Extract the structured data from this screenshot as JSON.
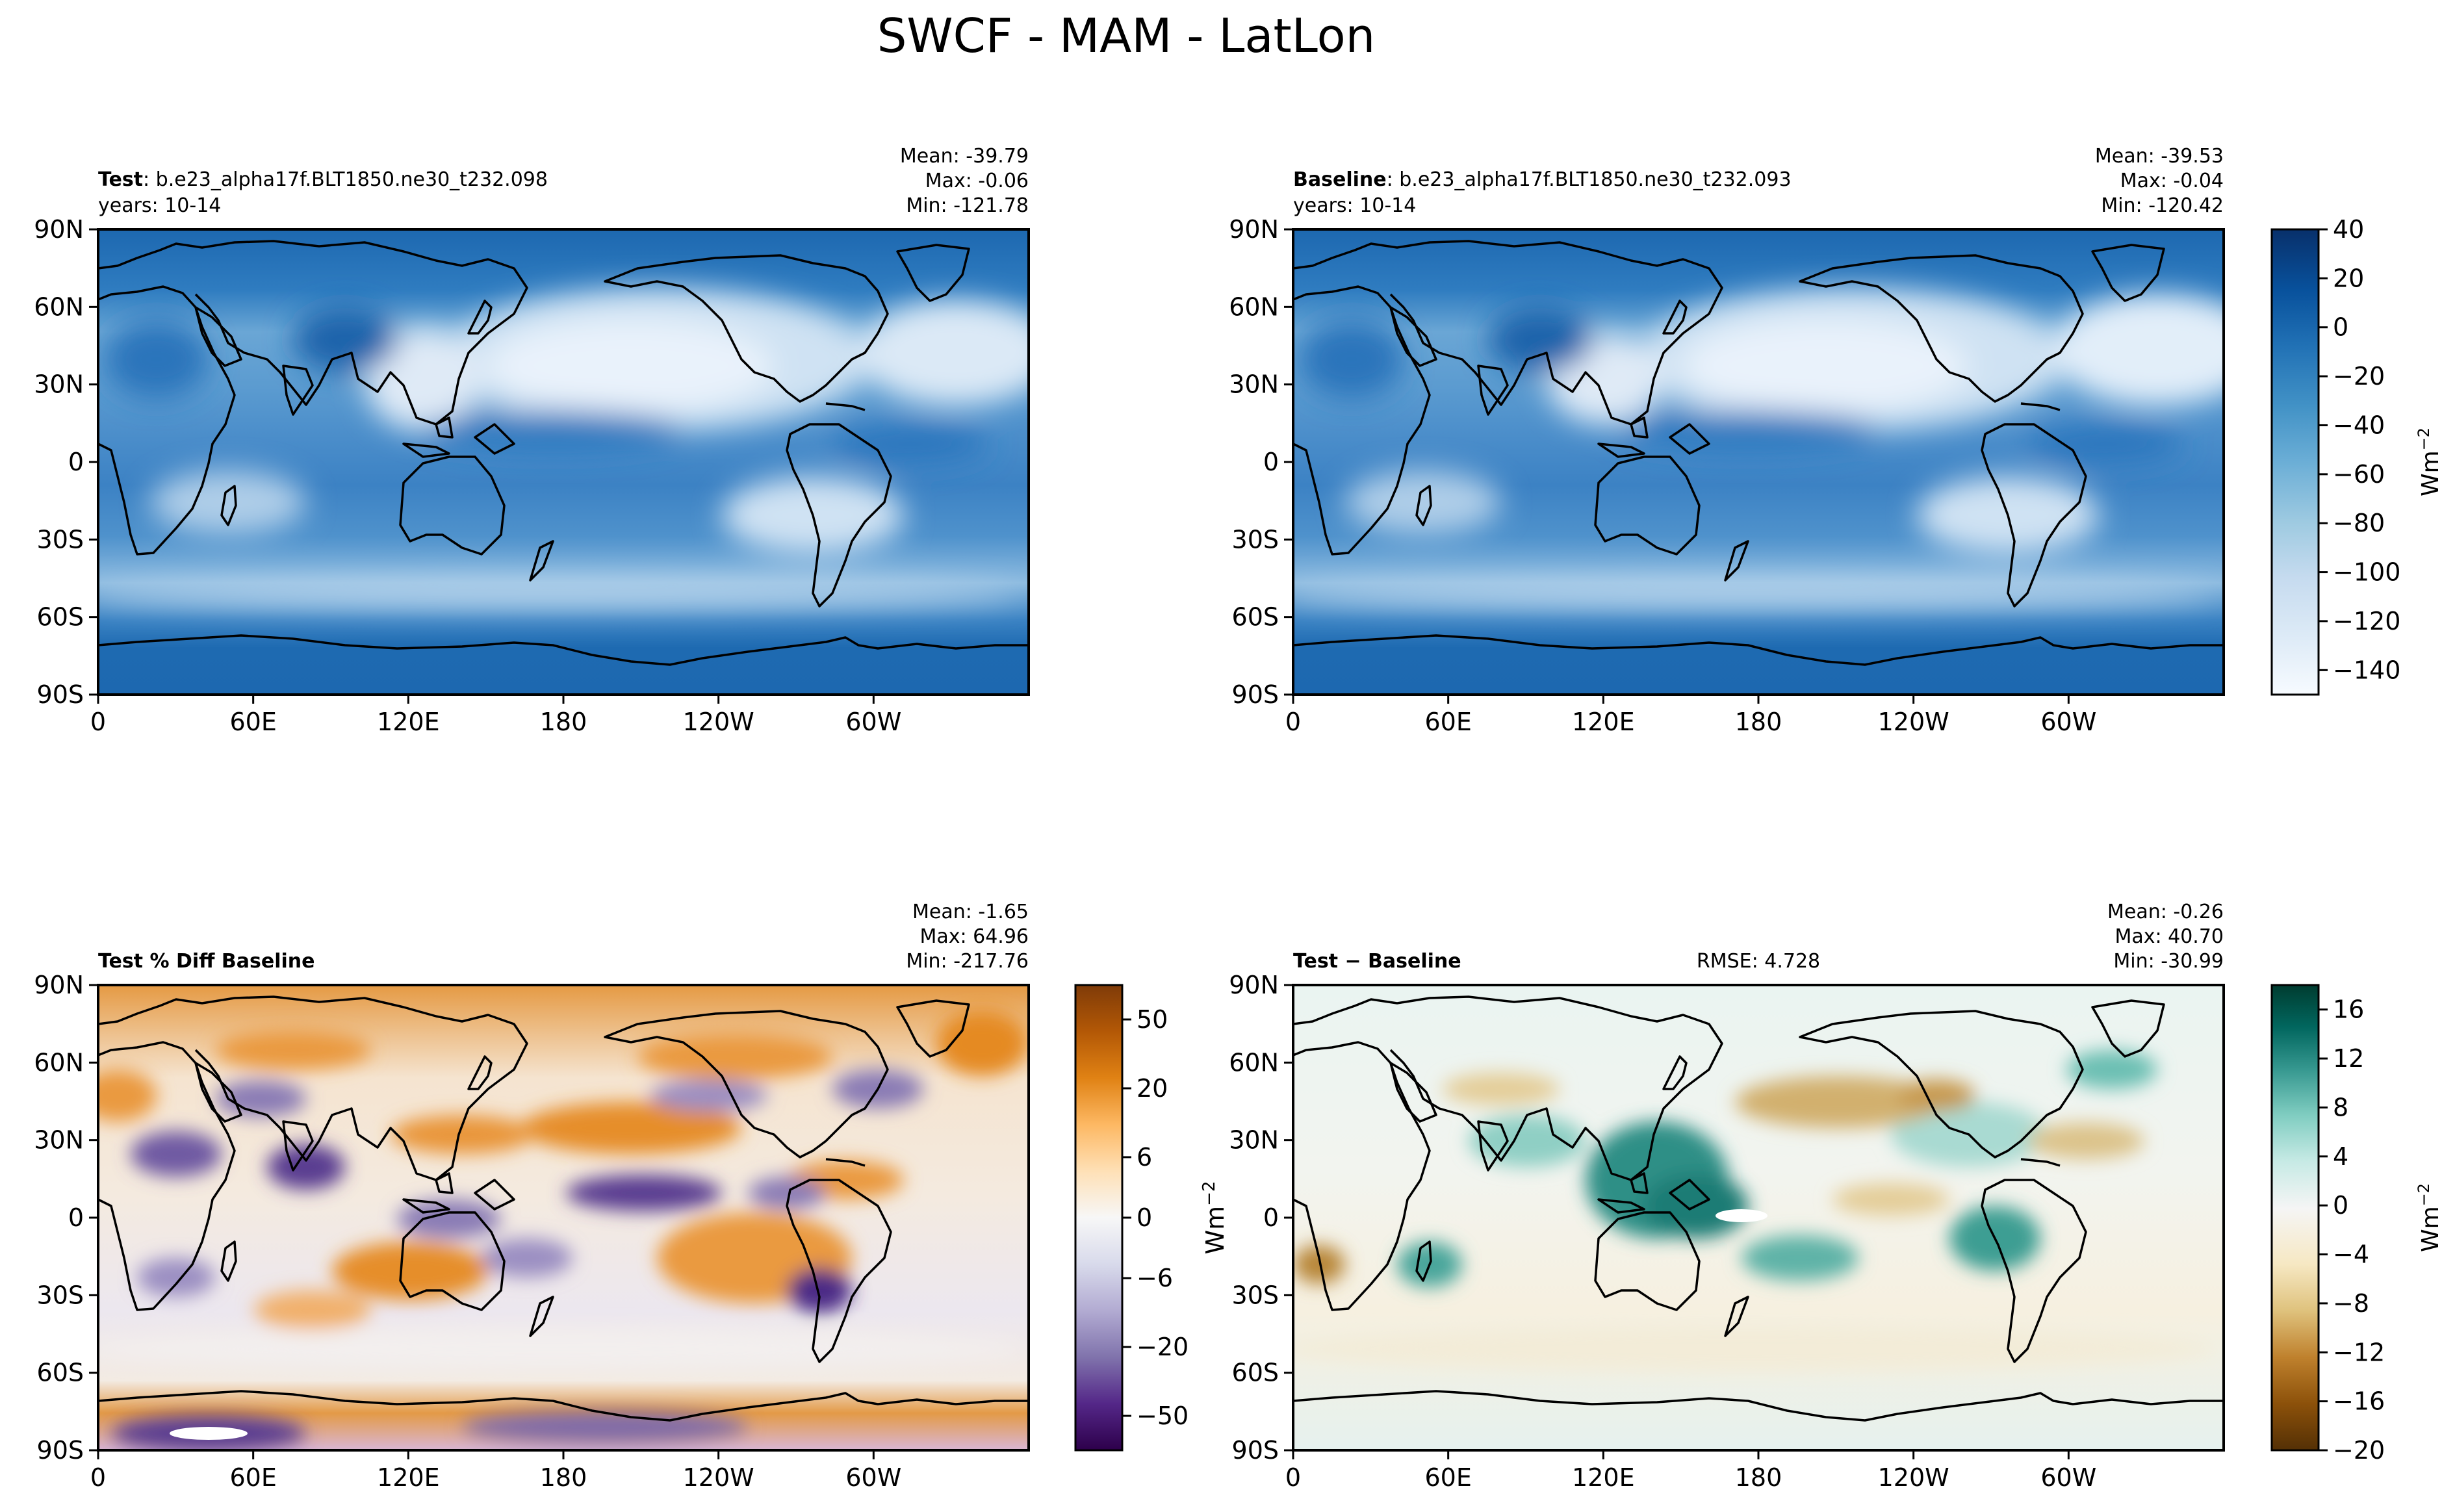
{
  "figure": {
    "title": "SWCF - MAM - LatLon"
  },
  "chart_data": [
    {
      "type": "heatmap",
      "panel": "test",
      "title_bold": "Test",
      "title_rest": ": b.e23_alpha17f.BLT1850.ne30_t232.098",
      "subtitle": "years: 10-14",
      "stats": {
        "mean": "Mean: -39.79",
        "max": "Max: -0.06",
        "min": "Min: -121.78"
      },
      "x_ticks": [
        "0",
        "60E",
        "120E",
        "180",
        "120W",
        "60W"
      ],
      "y_ticks": [
        "90N",
        "60N",
        "30N",
        "0",
        "30S",
        "60S",
        "90S"
      ],
      "field_range": [
        -121.78,
        -0.06
      ]
    },
    {
      "type": "heatmap",
      "panel": "baseline",
      "title_bold": "Baseline",
      "title_rest": ": b.e23_alpha17f.BLT1850.ne30_t232.093",
      "subtitle": "years: 10-14",
      "stats": {
        "mean": "Mean: -39.53",
        "max": "Max: -0.04",
        "min": "Min: -120.42"
      },
      "x_ticks": [
        "0",
        "60E",
        "120E",
        "180",
        "120W",
        "60W"
      ],
      "y_ticks": [
        "90N",
        "60N",
        "30N",
        "0",
        "30S",
        "60S",
        "90S"
      ],
      "colorbar": {
        "ticks": [
          "40",
          "20",
          "0",
          "−20",
          "−40",
          "−60",
          "−80",
          "−100",
          "−120",
          "−140"
        ],
        "tick_values": [
          40,
          20,
          0,
          -20,
          -40,
          -60,
          -80,
          -100,
          -120,
          -140
        ],
        "range": [
          -150,
          40
        ],
        "label": "Wm",
        "label_sup": "−2"
      }
    },
    {
      "type": "heatmap",
      "panel": "pct_diff",
      "title_bold": "Test % Diff Baseline",
      "stats": {
        "mean": "Mean: -1.65",
        "max": "Max: 64.96",
        "min": "Min: -217.76"
      },
      "x_ticks": [
        "0",
        "60E",
        "120E",
        "180",
        "120W",
        "60W"
      ],
      "y_ticks": [
        "90N",
        "60N",
        "30N",
        "0",
        "30S",
        "60S",
        "90S"
      ],
      "colorbar": {
        "ticks": [
          "50",
          "20",
          "6",
          "0",
          "−6",
          "−20",
          "−50"
        ],
        "tick_fracs": [
          0.074,
          0.222,
          0.37,
          0.5,
          0.63,
          0.778,
          0.926
        ]
      }
    },
    {
      "type": "heatmap",
      "panel": "diff",
      "title_bold": "Test − Baseline",
      "rmse": "RMSE: 4.728",
      "stats": {
        "mean": "Mean: -0.26",
        "max": "Max: 40.70",
        "min": "Min: -30.99"
      },
      "x_ticks": [
        "0",
        "60E",
        "120E",
        "180",
        "120W",
        "60W"
      ],
      "y_ticks": [
        "90N",
        "60N",
        "30N",
        "0",
        "30S",
        "60S",
        "90S"
      ],
      "y_label": "Wm",
      "y_label_sup": "−2",
      "colorbar": {
        "ticks": [
          "16",
          "12",
          "8",
          "4",
          "0",
          "−4",
          "−8",
          "−12",
          "−16",
          "−20"
        ],
        "tick_values": [
          16,
          12,
          8,
          4,
          0,
          -4,
          -8,
          -12,
          -16,
          -20
        ],
        "range": [
          -20,
          18
        ],
        "label": "Wm",
        "label_sup": "−2"
      }
    }
  ],
  "colors": {
    "blues": [
      "#f7fbff",
      "#deebf7",
      "#c6dbef",
      "#9ecae1",
      "#6baed6",
      "#4292c6",
      "#2171b5",
      "#08519c",
      "#08306b"
    ],
    "puor": [
      "#2d004b",
      "#542788",
      "#8073ac",
      "#b2abd2",
      "#d8daeb",
      "#f7f7f7",
      "#fee0b6",
      "#fdb863",
      "#e08214",
      "#b35806",
      "#7f3b08"
    ],
    "brbg": [
      "#543005",
      "#8c510a",
      "#bf812d",
      "#dfc27d",
      "#f6e8c3",
      "#f5f5f5",
      "#c7eae5",
      "#80cdc1",
      "#35978f",
      "#01665e",
      "#003c30"
    ]
  }
}
